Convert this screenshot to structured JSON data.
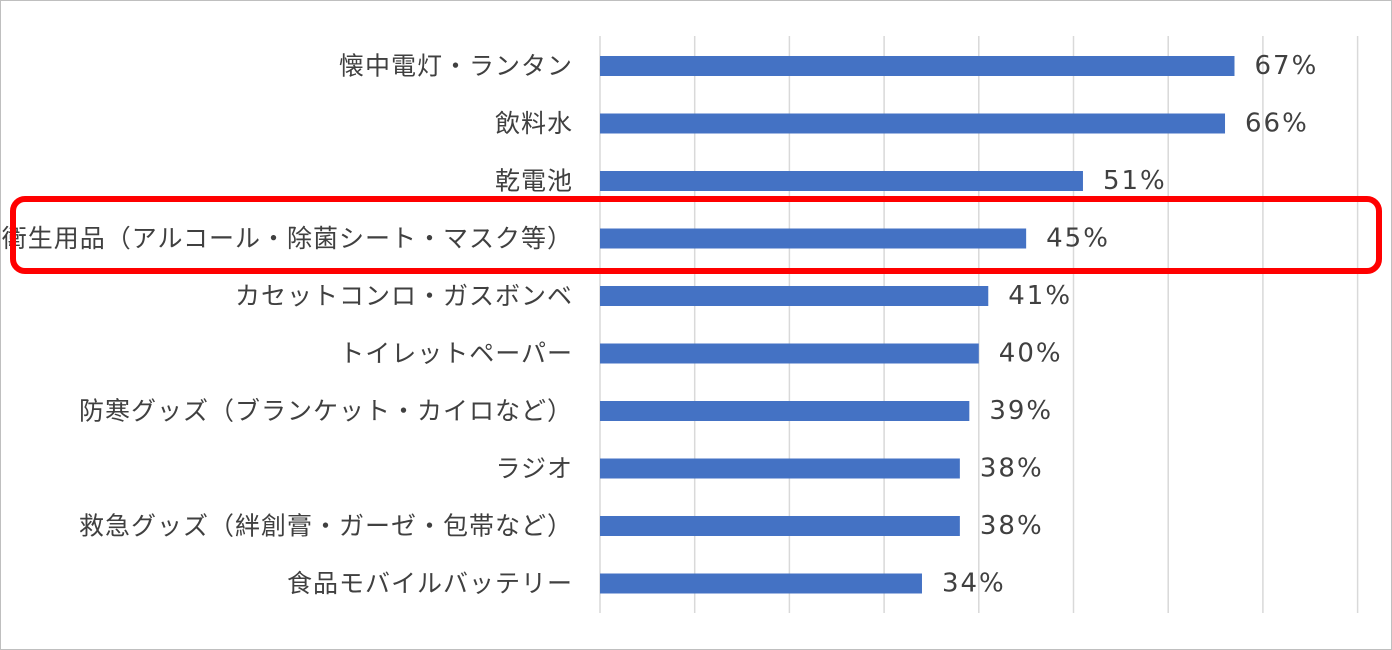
{
  "chart_data": {
    "type": "bar",
    "orientation": "horizontal",
    "categories": [
      "懐中電灯・ランタン",
      "飲料水",
      "乾電池",
      "衛生用品（アルコール・除菌シート・マスク等）",
      "カセットコンロ・ガスボンベ",
      "トイレットペーパー",
      "防寒グッズ（ブランケット・カイロなど）",
      "ラジオ",
      "救急グッズ（絆創膏・ガーゼ・包帯など）",
      "食品モバイルバッテリー"
    ],
    "values": [
      67,
      66,
      51,
      45,
      41,
      40,
      39,
      38,
      38,
      34
    ],
    "value_labels": [
      "67%",
      "66%",
      "51%",
      "45%",
      "41%",
      "40%",
      "39%",
      "38%",
      "38%",
      "34%"
    ],
    "xlim": [
      0,
      80
    ],
    "grid": true,
    "highlighted_category_index": 3,
    "colors": {
      "bar": "#4472c4",
      "highlight": "#ff0000",
      "grid": "#d9d9d9",
      "text": "#404040"
    }
  }
}
